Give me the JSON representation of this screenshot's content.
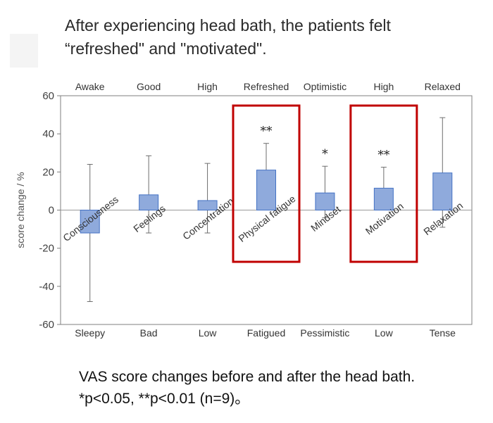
{
  "headline": {
    "line1": "After experiencing head bath, the patients felt",
    "line2": "“refreshed\" and \"motivated\"."
  },
  "caption": {
    "line1": "VAS score changes before and after the head bath.",
    "line2": "*p<0.05, **p<0.01 (n=9)。"
  },
  "chart_data": {
    "type": "bar",
    "categories": [
      "Consciousness",
      "Feelings",
      "Concentration",
      "Physical fatigue",
      "Mindset",
      "Motivation",
      "Relaxation"
    ],
    "values": [
      -12,
      8,
      5,
      21,
      9,
      11.5,
      19.5
    ],
    "error_upper": [
      24,
      28.5,
      24.5,
      35,
      23,
      22.5,
      48.5
    ],
    "error_lower": [
      -48,
      -12,
      -12,
      6.5,
      -4,
      1,
      -9
    ],
    "significance": [
      "",
      "",
      "",
      "**",
      "*",
      "**",
      ""
    ],
    "top_labels": [
      "Awake",
      "Good",
      "High",
      "Refreshed",
      "Optimistic",
      "High",
      "Relaxed"
    ],
    "bottom_labels": [
      "Sleepy",
      "Bad",
      "Low",
      "Fatigued",
      "Pessimistic",
      "Low",
      "Tense"
    ],
    "ylabel": "score change / %",
    "ylim": [
      -60,
      60
    ],
    "yticks": [
      60,
      40,
      20,
      0,
      -20,
      -40,
      -60
    ],
    "highlighted_categories": [
      "Physical fatigue",
      "Motivation"
    ],
    "colors": {
      "bar": "#8faadc",
      "bar_edge": "#4472c4",
      "highlight": "#c00000",
      "axis": "#7f7f7f"
    },
    "grid": false
  }
}
